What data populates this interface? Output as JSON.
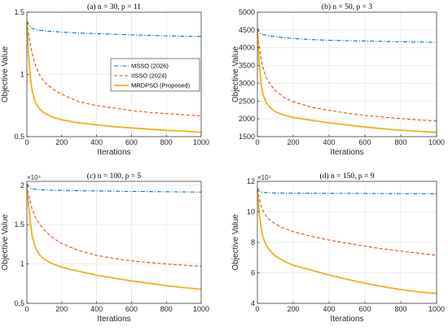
{
  "chart_data": [
    {
      "type": "line",
      "title": "(a) n = 30, p = 11",
      "xlabel": "Iterations",
      "ylabel": "Objective Value",
      "xlim": [
        0,
        1000
      ],
      "ylim": [
        0.5,
        1.5
      ],
      "xticks": [
        0,
        200,
        400,
        600,
        800,
        1000
      ],
      "yticks": [
        0.5,
        1,
        1.5
      ],
      "yticklabels": [
        "0.5",
        "1",
        "1.5"
      ],
      "multiplier": "",
      "grid": true,
      "legend": "center-right",
      "series": [
        {
          "name": "MSSO (2026)",
          "color": "#0072bd",
          "style": "dashdot",
          "x": [
            0,
            10,
            20,
            30,
            50,
            75,
            100,
            150,
            200,
            300,
            400,
            500,
            600,
            700,
            800,
            900,
            1000
          ],
          "y": [
            1.43,
            1.4,
            1.38,
            1.37,
            1.36,
            1.355,
            1.35,
            1.345,
            1.34,
            1.333,
            1.328,
            1.323,
            1.318,
            1.314,
            1.31,
            1.307,
            1.305
          ]
        },
        {
          "name": "IISSO (2024)",
          "color": "#d95319",
          "style": "dashed",
          "x": [
            0,
            10,
            20,
            30,
            50,
            75,
            100,
            150,
            200,
            300,
            400,
            500,
            600,
            700,
            800,
            900,
            1000
          ],
          "y": [
            1.42,
            1.33,
            1.24,
            1.17,
            1.07,
            0.99,
            0.94,
            0.88,
            0.84,
            0.78,
            0.75,
            0.73,
            0.71,
            0.695,
            0.685,
            0.675,
            0.668
          ]
        },
        {
          "name": "MRDPSO (Proposed)",
          "color": "#edb120",
          "style": "solid",
          "x": [
            0,
            10,
            20,
            30,
            50,
            75,
            100,
            150,
            200,
            300,
            400,
            500,
            600,
            700,
            800,
            900,
            1000
          ],
          "y": [
            1.42,
            1.15,
            0.98,
            0.87,
            0.77,
            0.72,
            0.69,
            0.655,
            0.635,
            0.61,
            0.595,
            0.58,
            0.57,
            0.56,
            0.55,
            0.545,
            0.535
          ]
        }
      ]
    },
    {
      "type": "line",
      "title": "(b) n = 50, p = 3",
      "xlabel": "Iterations",
      "ylabel": "Objective Value",
      "xlim": [
        0,
        1000
      ],
      "ylim": [
        1500,
        5000
      ],
      "xticks": [
        0,
        200,
        400,
        600,
        800,
        1000
      ],
      "yticks": [
        1500,
        2000,
        2500,
        3000,
        3500,
        4000,
        4500,
        5000
      ],
      "yticklabels": [
        "1500",
        "2000",
        "2500",
        "3000",
        "3500",
        "4000",
        "4500",
        "5000"
      ],
      "multiplier": "",
      "grid": true,
      "series": [
        {
          "name": "MSSO (2026)",
          "color": "#0072bd",
          "style": "dashdot",
          "x": [
            0,
            10,
            20,
            30,
            50,
            75,
            100,
            150,
            200,
            300,
            400,
            500,
            600,
            700,
            800,
            900,
            1000
          ],
          "y": [
            4550,
            4430,
            4390,
            4370,
            4350,
            4330,
            4310,
            4280,
            4260,
            4230,
            4210,
            4200,
            4190,
            4180,
            4170,
            4160,
            4150
          ]
        },
        {
          "name": "IISSO (2024)",
          "color": "#d95319",
          "style": "dashed",
          "x": [
            0,
            10,
            20,
            30,
            50,
            75,
            100,
            150,
            200,
            300,
            400,
            500,
            600,
            700,
            800,
            900,
            1000
          ],
          "y": [
            4500,
            4050,
            3700,
            3450,
            3150,
            2950,
            2800,
            2600,
            2480,
            2330,
            2240,
            2160,
            2100,
            2050,
            2010,
            1970,
            1940
          ]
        },
        {
          "name": "MRDPSO (Proposed)",
          "color": "#edb120",
          "style": "solid",
          "x": [
            0,
            10,
            20,
            30,
            50,
            75,
            100,
            150,
            200,
            300,
            400,
            500,
            600,
            700,
            800,
            900,
            1000
          ],
          "y": [
            4450,
            3600,
            3000,
            2700,
            2450,
            2300,
            2200,
            2100,
            2040,
            1960,
            1890,
            1830,
            1770,
            1720,
            1680,
            1650,
            1620
          ]
        }
      ]
    },
    {
      "type": "line",
      "title": "(c) n = 100, p = 5",
      "xlabel": "Iterations",
      "ylabel": "Objective Value",
      "xlim": [
        0,
        1000
      ],
      "ylim": [
        5000,
        20500
      ],
      "xticks": [
        0,
        200,
        400,
        600,
        800,
        1000
      ],
      "yticks": [
        5000,
        10000,
        15000,
        20000
      ],
      "yticklabels": [
        "0.5",
        "1",
        "1.5",
        "2"
      ],
      "multiplier": "×10⁴",
      "grid": true,
      "series": [
        {
          "name": "MSSO (2026)",
          "color": "#0072bd",
          "style": "dashdot",
          "x": [
            0,
            10,
            20,
            30,
            50,
            75,
            100,
            150,
            200,
            300,
            400,
            500,
            600,
            700,
            800,
            900,
            1000
          ],
          "y": [
            20200,
            19800,
            19650,
            19550,
            19500,
            19450,
            19400,
            19350,
            19350,
            19300,
            19280,
            19250,
            19220,
            19200,
            19180,
            19160,
            19140
          ]
        },
        {
          "name": "IISSO (2024)",
          "color": "#d95319",
          "style": "dashed",
          "x": [
            0,
            10,
            20,
            30,
            50,
            75,
            100,
            150,
            200,
            300,
            400,
            500,
            600,
            700,
            800,
            900,
            1000
          ],
          "y": [
            20000,
            18800,
            17800,
            17000,
            15900,
            15000,
            14300,
            13300,
            12600,
            11700,
            11100,
            10700,
            10400,
            10200,
            10000,
            9850,
            9700
          ]
        },
        {
          "name": "MRDPSO (Proposed)",
          "color": "#edb120",
          "style": "solid",
          "x": [
            0,
            10,
            20,
            30,
            50,
            75,
            100,
            150,
            200,
            300,
            400,
            500,
            600,
            700,
            800,
            900,
            1000
          ],
          "y": [
            19800,
            17500,
            15300,
            13600,
            12000,
            11100,
            10600,
            10000,
            9600,
            9050,
            8600,
            8200,
            7850,
            7550,
            7250,
            7000,
            6800
          ]
        }
      ]
    },
    {
      "type": "line",
      "title": "(d) n = 150, p = 9",
      "xlabel": "Iterations",
      "ylabel": "Objective Value",
      "xlim": [
        0,
        1000
      ],
      "ylim": [
        40000,
        120000
      ],
      "xticks": [
        0,
        200,
        400,
        600,
        800,
        1000
      ],
      "yticks": [
        40000,
        60000,
        80000,
        100000,
        120000
      ],
      "yticklabels": [
        "4",
        "6",
        "8",
        "10",
        "12"
      ],
      "multiplier": "×10⁴",
      "grid": true,
      "series": [
        {
          "name": "MSSO (2026)",
          "color": "#0072bd",
          "style": "dashdot",
          "x": [
            0,
            10,
            20,
            30,
            50,
            75,
            100,
            150,
            200,
            300,
            400,
            500,
            600,
            700,
            800,
            900,
            1000
          ],
          "y": [
            115500,
            113500,
            113000,
            112800,
            112600,
            112500,
            112400,
            112300,
            112300,
            112200,
            112150,
            112100,
            112050,
            112000,
            111950,
            111900,
            111850
          ]
        },
        {
          "name": "IISSO (2024)",
          "color": "#d95319",
          "style": "dashed",
          "x": [
            0,
            10,
            20,
            30,
            50,
            75,
            100,
            150,
            200,
            300,
            400,
            500,
            600,
            700,
            800,
            900,
            1000
          ],
          "y": [
            115000,
            109000,
            104000,
            101000,
            97000,
            94000,
            92000,
            89000,
            87000,
            84000,
            81500,
            79500,
            77500,
            75700,
            74300,
            72900,
            71500
          ]
        },
        {
          "name": "MRDPSO (Proposed)",
          "color": "#edb120",
          "style": "solid",
          "x": [
            0,
            10,
            20,
            30,
            50,
            75,
            100,
            150,
            200,
            300,
            400,
            500,
            600,
            700,
            800,
            900,
            1000
          ],
          "y": [
            114000,
            100000,
            90000,
            84000,
            78000,
            74000,
            71000,
            67500,
            65000,
            61800,
            58600,
            55800,
            53200,
            51000,
            49000,
            47500,
            46500
          ]
        }
      ]
    }
  ]
}
